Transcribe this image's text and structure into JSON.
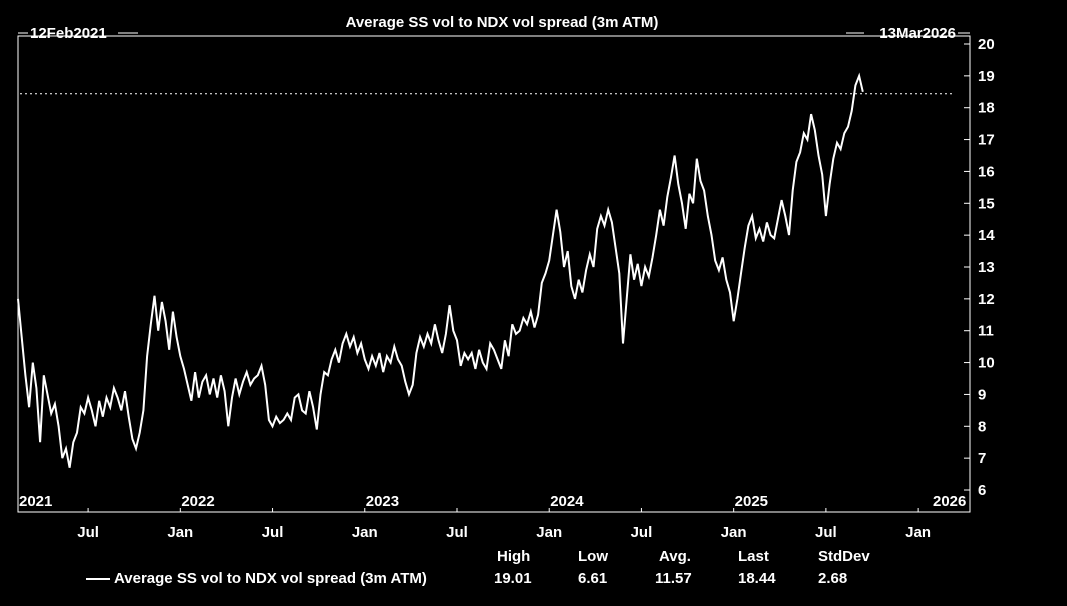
{
  "chart_data": {
    "type": "line",
    "title": "Average SS vol to NDX vol spread (3m ATM)",
    "start_label": "12Feb2021",
    "end_label": "13Mar2026",
    "ylim": [
      6,
      20
    ],
    "yticks": [
      "6",
      "7",
      "8",
      "9",
      "10",
      "11",
      "12",
      "13",
      "14",
      "15",
      "16",
      "17",
      "18",
      "19",
      "20"
    ],
    "year_labels": [
      {
        "t": 2021.12,
        "label": "2021"
      },
      {
        "t": 2022.0,
        "label": "2022"
      },
      {
        "t": 2023.0,
        "label": "2023"
      },
      {
        "t": 2024.0,
        "label": "2024"
      },
      {
        "t": 2025.0,
        "label": "2025"
      },
      {
        "t": 2026.0,
        "label": "2026"
      }
    ],
    "month_labels": [
      {
        "t": 2021.5,
        "label": "Jul"
      },
      {
        "t": 2022.0,
        "label": "Jan"
      },
      {
        "t": 2022.5,
        "label": "Jul"
      },
      {
        "t": 2023.0,
        "label": "Jan"
      },
      {
        "t": 2023.5,
        "label": "Jul"
      },
      {
        "t": 2024.0,
        "label": "Jan"
      },
      {
        "t": 2024.5,
        "label": "Jul"
      },
      {
        "t": 2025.0,
        "label": "Jan"
      },
      {
        "t": 2025.5,
        "label": "Jul"
      },
      {
        "t": 2026.0,
        "label": "Jan"
      }
    ],
    "xlim": [
      2021.12,
      2026.2
    ],
    "reference_line": 18.44,
    "series": [
      {
        "name": "Average SS vol to NDX vol spread (3m ATM)",
        "color": "#ffffff",
        "points": [
          [
            2021.12,
            12.0
          ],
          [
            2021.14,
            10.8
          ],
          [
            2021.16,
            9.6
          ],
          [
            2021.18,
            8.6
          ],
          [
            2021.2,
            10.0
          ],
          [
            2021.22,
            9.2
          ],
          [
            2021.24,
            7.5
          ],
          [
            2021.26,
            9.6
          ],
          [
            2021.28,
            9.0
          ],
          [
            2021.3,
            8.4
          ],
          [
            2021.32,
            8.7
          ],
          [
            2021.34,
            8.0
          ],
          [
            2021.36,
            7.0
          ],
          [
            2021.38,
            7.3
          ],
          [
            2021.4,
            6.7
          ],
          [
            2021.42,
            7.5
          ],
          [
            2021.44,
            7.8
          ],
          [
            2021.46,
            8.6
          ],
          [
            2021.48,
            8.4
          ],
          [
            2021.5,
            8.9
          ],
          [
            2021.52,
            8.5
          ],
          [
            2021.54,
            8.0
          ],
          [
            2021.56,
            8.8
          ],
          [
            2021.58,
            8.3
          ],
          [
            2021.6,
            8.9
          ],
          [
            2021.62,
            8.6
          ],
          [
            2021.64,
            9.2
          ],
          [
            2021.66,
            8.9
          ],
          [
            2021.68,
            8.5
          ],
          [
            2021.7,
            9.1
          ],
          [
            2021.72,
            8.3
          ],
          [
            2021.74,
            7.6
          ],
          [
            2021.76,
            7.3
          ],
          [
            2021.78,
            7.8
          ],
          [
            2021.8,
            8.5
          ],
          [
            2021.82,
            10.2
          ],
          [
            2021.84,
            11.2
          ],
          [
            2021.86,
            12.1
          ],
          [
            2021.88,
            11.0
          ],
          [
            2021.9,
            11.9
          ],
          [
            2021.92,
            11.3
          ],
          [
            2021.94,
            10.4
          ],
          [
            2021.96,
            11.6
          ],
          [
            2021.98,
            10.8
          ],
          [
            2022.0,
            10.2
          ],
          [
            2022.02,
            9.8
          ],
          [
            2022.04,
            9.3
          ],
          [
            2022.06,
            8.8
          ],
          [
            2022.08,
            9.7
          ],
          [
            2022.1,
            8.9
          ],
          [
            2022.12,
            9.4
          ],
          [
            2022.14,
            9.6
          ],
          [
            2022.16,
            9.0
          ],
          [
            2022.18,
            9.5
          ],
          [
            2022.2,
            8.9
          ],
          [
            2022.22,
            9.6
          ],
          [
            2022.24,
            9.1
          ],
          [
            2022.26,
            8.0
          ],
          [
            2022.28,
            8.9
          ],
          [
            2022.3,
            9.5
          ],
          [
            2022.32,
            9.0
          ],
          [
            2022.34,
            9.4
          ],
          [
            2022.36,
            9.7
          ],
          [
            2022.38,
            9.3
          ],
          [
            2022.4,
            9.5
          ],
          [
            2022.42,
            9.6
          ],
          [
            2022.44,
            9.9
          ],
          [
            2022.46,
            9.3
          ],
          [
            2022.48,
            8.2
          ],
          [
            2022.5,
            8.0
          ],
          [
            2022.52,
            8.3
          ],
          [
            2022.54,
            8.1
          ],
          [
            2022.56,
            8.2
          ],
          [
            2022.58,
            8.4
          ],
          [
            2022.6,
            8.2
          ],
          [
            2022.62,
            8.9
          ],
          [
            2022.64,
            9.0
          ],
          [
            2022.66,
            8.5
          ],
          [
            2022.68,
            8.4
          ],
          [
            2022.7,
            9.1
          ],
          [
            2022.72,
            8.6
          ],
          [
            2022.74,
            7.9
          ],
          [
            2022.76,
            9.0
          ],
          [
            2022.78,
            9.7
          ],
          [
            2022.8,
            9.6
          ],
          [
            2022.82,
            10.1
          ],
          [
            2022.84,
            10.4
          ],
          [
            2022.86,
            10.0
          ],
          [
            2022.88,
            10.6
          ],
          [
            2022.9,
            10.9
          ],
          [
            2022.92,
            10.5
          ],
          [
            2022.94,
            10.8
          ],
          [
            2022.96,
            10.3
          ],
          [
            2022.98,
            10.6
          ],
          [
            2023.0,
            10.1
          ],
          [
            2023.02,
            9.8
          ],
          [
            2023.04,
            10.2
          ],
          [
            2023.06,
            9.9
          ],
          [
            2023.08,
            10.3
          ],
          [
            2023.1,
            9.7
          ],
          [
            2023.12,
            10.2
          ],
          [
            2023.14,
            10.0
          ],
          [
            2023.16,
            10.5
          ],
          [
            2023.18,
            10.1
          ],
          [
            2023.2,
            9.9
          ],
          [
            2023.22,
            9.4
          ],
          [
            2023.24,
            9.0
          ],
          [
            2023.26,
            9.3
          ],
          [
            2023.28,
            10.3
          ],
          [
            2023.3,
            10.8
          ],
          [
            2023.32,
            10.5
          ],
          [
            2023.34,
            10.9
          ],
          [
            2023.36,
            10.6
          ],
          [
            2023.38,
            11.2
          ],
          [
            2023.4,
            10.7
          ],
          [
            2023.42,
            10.3
          ],
          [
            2023.44,
            10.9
          ],
          [
            2023.46,
            11.8
          ],
          [
            2023.48,
            11.0
          ],
          [
            2023.5,
            10.7
          ],
          [
            2023.52,
            9.9
          ],
          [
            2023.54,
            10.3
          ],
          [
            2023.56,
            10.1
          ],
          [
            2023.58,
            10.3
          ],
          [
            2023.6,
            9.8
          ],
          [
            2023.62,
            10.4
          ],
          [
            2023.64,
            10.0
          ],
          [
            2023.66,
            9.8
          ],
          [
            2023.68,
            10.6
          ],
          [
            2023.7,
            10.4
          ],
          [
            2023.72,
            10.1
          ],
          [
            2023.74,
            9.8
          ],
          [
            2023.76,
            10.7
          ],
          [
            2023.78,
            10.2
          ],
          [
            2023.8,
            11.2
          ],
          [
            2023.82,
            10.9
          ],
          [
            2023.84,
            11.0
          ],
          [
            2023.86,
            11.4
          ],
          [
            2023.88,
            11.2
          ],
          [
            2023.9,
            11.6
          ],
          [
            2023.92,
            11.1
          ],
          [
            2023.94,
            11.5
          ],
          [
            2023.96,
            12.5
          ],
          [
            2023.98,
            12.8
          ],
          [
            2024.0,
            13.2
          ],
          [
            2024.02,
            14.0
          ],
          [
            2024.04,
            14.8
          ],
          [
            2024.06,
            14.1
          ],
          [
            2024.08,
            13.0
          ],
          [
            2024.1,
            13.5
          ],
          [
            2024.12,
            12.4
          ],
          [
            2024.14,
            12.0
          ],
          [
            2024.16,
            12.6
          ],
          [
            2024.18,
            12.2
          ],
          [
            2024.2,
            12.9
          ],
          [
            2024.22,
            13.4
          ],
          [
            2024.24,
            13.0
          ],
          [
            2024.26,
            14.2
          ],
          [
            2024.28,
            14.6
          ],
          [
            2024.3,
            14.3
          ],
          [
            2024.32,
            14.8
          ],
          [
            2024.34,
            14.4
          ],
          [
            2024.36,
            13.6
          ],
          [
            2024.38,
            12.8
          ],
          [
            2024.4,
            10.6
          ],
          [
            2024.42,
            12.0
          ],
          [
            2024.44,
            13.4
          ],
          [
            2024.46,
            12.6
          ],
          [
            2024.48,
            13.1
          ],
          [
            2024.5,
            12.4
          ],
          [
            2024.52,
            13.0
          ],
          [
            2024.54,
            12.7
          ],
          [
            2024.56,
            13.3
          ],
          [
            2024.58,
            14.0
          ],
          [
            2024.6,
            14.8
          ],
          [
            2024.62,
            14.3
          ],
          [
            2024.64,
            15.2
          ],
          [
            2024.66,
            15.8
          ],
          [
            2024.68,
            16.5
          ],
          [
            2024.7,
            15.6
          ],
          [
            2024.72,
            15.0
          ],
          [
            2024.74,
            14.2
          ],
          [
            2024.76,
            15.3
          ],
          [
            2024.78,
            15.0
          ],
          [
            2024.8,
            16.4
          ],
          [
            2024.82,
            15.7
          ],
          [
            2024.84,
            15.4
          ],
          [
            2024.86,
            14.6
          ],
          [
            2024.88,
            14.0
          ],
          [
            2024.9,
            13.2
          ],
          [
            2024.92,
            12.9
          ],
          [
            2024.94,
            13.3
          ],
          [
            2024.96,
            12.6
          ],
          [
            2024.98,
            12.2
          ],
          [
            2025.0,
            11.3
          ],
          [
            2025.02,
            12.0
          ],
          [
            2025.04,
            12.8
          ],
          [
            2025.06,
            13.6
          ],
          [
            2025.08,
            14.3
          ],
          [
            2025.1,
            14.6
          ],
          [
            2025.12,
            13.9
          ],
          [
            2025.14,
            14.2
          ],
          [
            2025.16,
            13.8
          ],
          [
            2025.18,
            14.4
          ],
          [
            2025.2,
            14.0
          ],
          [
            2025.22,
            13.9
          ],
          [
            2025.24,
            14.5
          ],
          [
            2025.26,
            15.1
          ],
          [
            2025.28,
            14.6
          ],
          [
            2025.3,
            14.0
          ],
          [
            2025.32,
            15.4
          ],
          [
            2025.34,
            16.3
          ],
          [
            2025.36,
            16.6
          ],
          [
            2025.38,
            17.2
          ],
          [
            2025.4,
            17.0
          ],
          [
            2025.42,
            17.8
          ],
          [
            2025.44,
            17.3
          ],
          [
            2025.46,
            16.5
          ],
          [
            2025.48,
            15.9
          ],
          [
            2025.5,
            14.6
          ],
          [
            2025.52,
            15.6
          ],
          [
            2025.54,
            16.4
          ],
          [
            2025.56,
            16.9
          ],
          [
            2025.58,
            16.7
          ],
          [
            2025.6,
            17.2
          ],
          [
            2025.62,
            17.4
          ],
          [
            2025.64,
            17.9
          ],
          [
            2025.66,
            18.7
          ],
          [
            2025.68,
            19.0
          ],
          [
            2025.7,
            18.5
          ]
        ]
      }
    ],
    "stats": {
      "headers": [
        "High",
        "Low",
        "Avg.",
        "Last",
        "StdDev"
      ],
      "values": [
        "19.01",
        "6.61",
        "11.57",
        "18.44",
        "2.68"
      ]
    }
  }
}
